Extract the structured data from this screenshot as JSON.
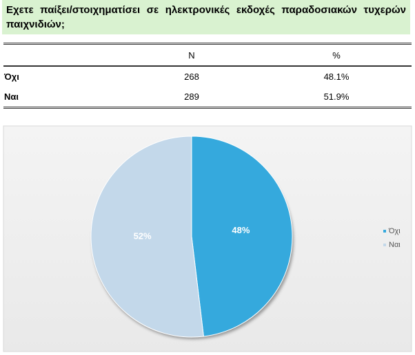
{
  "header": {
    "title": "Εχετε παίξει/στοιχηματίσει σε ηλεκτρονικές εκδοχές παραδοσιακών τυχερών παιχνιδιών;"
  },
  "table": {
    "columns": [
      "N",
      "%"
    ],
    "rows": [
      [
        "Όχι",
        "268",
        "48.1%"
      ],
      [
        "Ναι",
        "289",
        "51.9%"
      ]
    ]
  },
  "chart_data": {
    "type": "pie",
    "categories": [
      "Όχι",
      "Ναι"
    ],
    "values": [
      48.1,
      51.9
    ],
    "value_labels": [
      "48%",
      "52%"
    ],
    "colors": [
      "#35a9dd",
      "#c3d8ea"
    ],
    "legend": "right"
  }
}
